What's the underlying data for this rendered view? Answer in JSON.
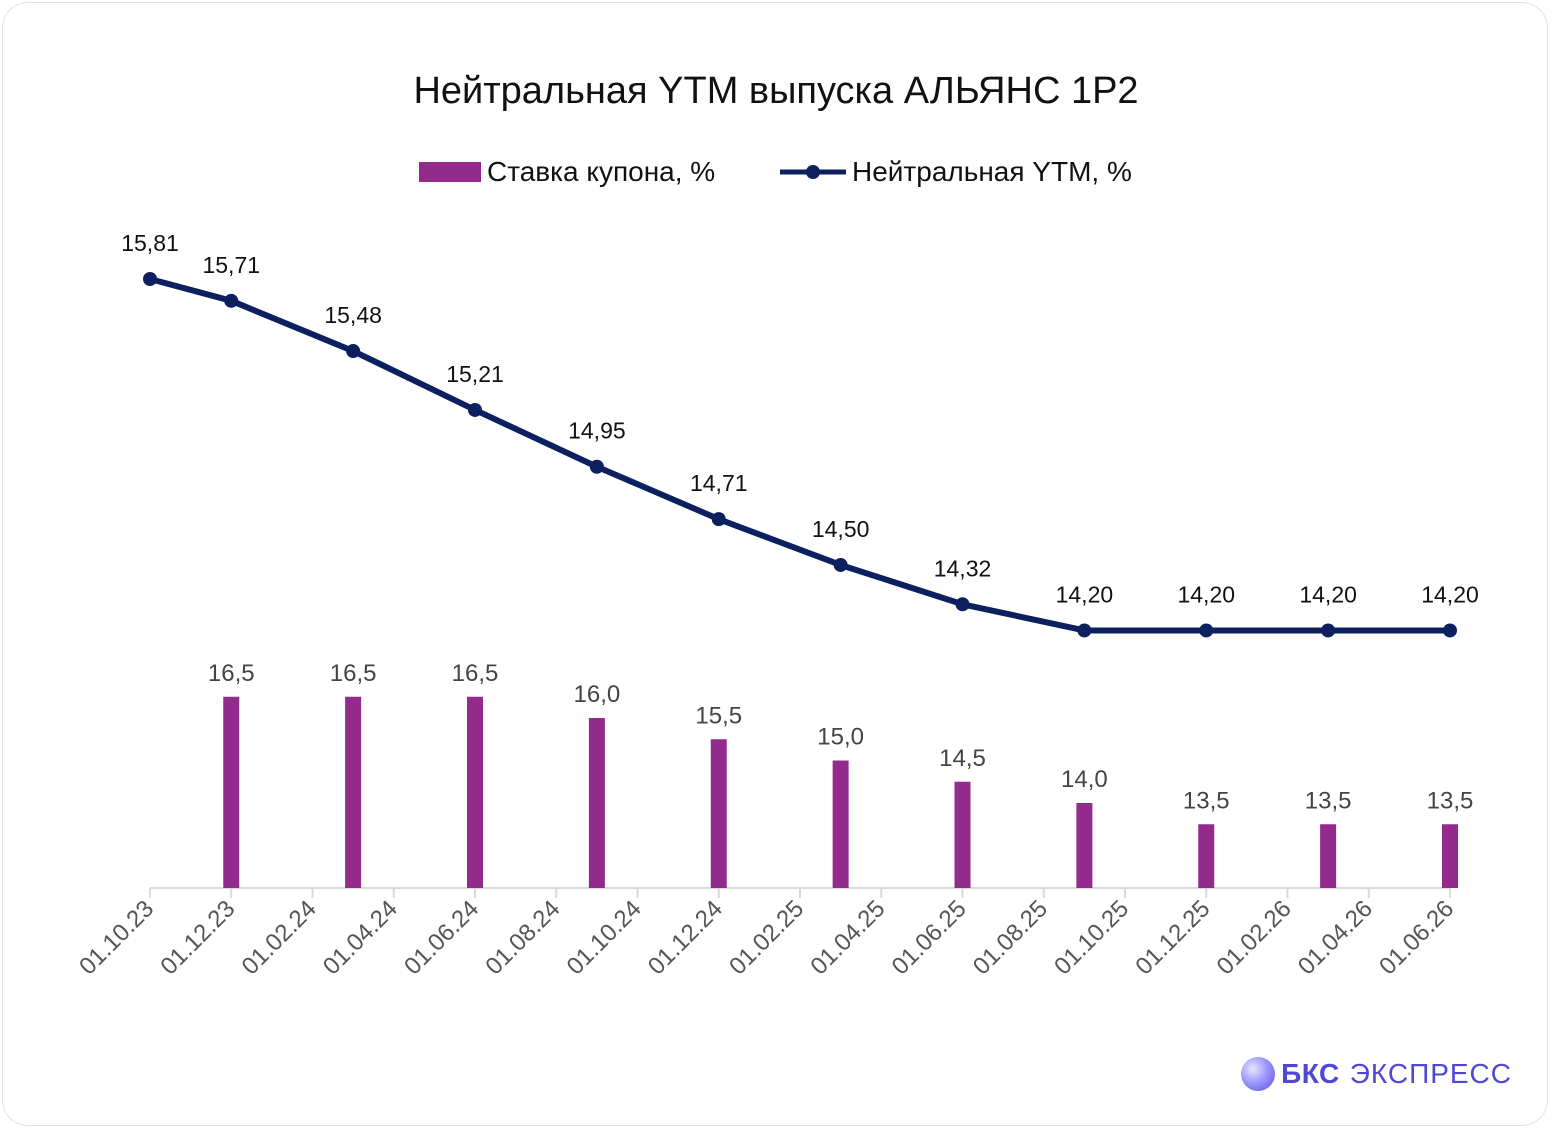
{
  "colors": {
    "bar": "#922B8C",
    "line": "#0C1F5E",
    "brand": "#4F48D6",
    "axis": "#D9D9D9",
    "text": "#111111"
  },
  "brand": {
    "strong": "БКС",
    "light": "ЭКСПРЕСС",
    "icon": "sphere-logo-icon"
  },
  "chart_data": {
    "type": "bar",
    "title": "Нейтральная YTM выпуска АЛЬЯНС 1Р2",
    "legend_position": "top",
    "grid": false,
    "x_axis_labels": [
      "01.10.23",
      "01.12.23",
      "01.02.24",
      "01.04.24",
      "01.06.24",
      "01.08.24",
      "01.10.24",
      "01.12.24",
      "01.02.25",
      "01.04.25",
      "01.06.25",
      "01.08.25",
      "01.10.25",
      "01.12.25",
      "01.02.26",
      "01.04.26",
      "01.06.26"
    ],
    "series": [
      {
        "name": "Ставка купона, %",
        "type": "bar",
        "x": [
          "01.12.23",
          "01.03.24",
          "01.06.24",
          "01.09.24",
          "01.12.24",
          "01.03.25",
          "01.06.25",
          "01.09.25",
          "01.12.25",
          "01.03.26",
          "01.06.26"
        ],
        "values": [
          16.5,
          16.5,
          16.5,
          16.0,
          15.5,
          15.0,
          14.5,
          14.0,
          13.5,
          13.5,
          13.5
        ],
        "labels": [
          "16,5",
          "16,5",
          "16,5",
          "16,0",
          "15,5",
          "15,0",
          "14,5",
          "14,0",
          "13,5",
          "13,5",
          "13,5"
        ]
      },
      {
        "name": "Нейтральная YTM, %",
        "type": "line",
        "x": [
          "01.10.23",
          "01.12.23",
          "01.03.24",
          "01.06.24",
          "01.09.24",
          "01.12.24",
          "01.03.25",
          "01.06.25",
          "01.09.25",
          "01.12.25",
          "01.03.26",
          "01.06.26"
        ],
        "values": [
          15.81,
          15.71,
          15.48,
          15.21,
          14.95,
          14.71,
          14.5,
          14.32,
          14.2,
          14.2,
          14.2,
          14.2
        ],
        "labels": [
          "15,81",
          "15,71",
          "15,48",
          "15,21",
          "14,95",
          "14,71",
          "14,50",
          "14,32",
          "14,20",
          "14,20",
          "14,20",
          "14,20"
        ]
      }
    ]
  }
}
